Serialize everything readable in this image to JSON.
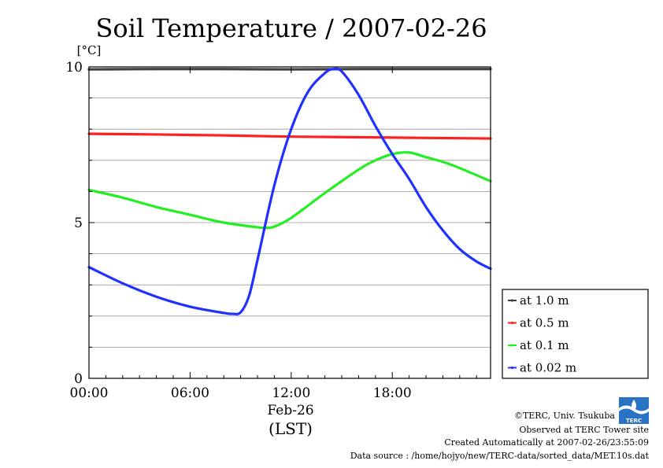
{
  "chart_data": {
    "type": "line",
    "title": "Soil Temperature / 2007-02-26",
    "ylabel": "[°C]",
    "xlabel": "(LST)",
    "x_date_label": "Feb-26",
    "x_unit": "hour of day",
    "xlim": [
      0,
      23.83
    ],
    "ylim": [
      0,
      10
    ],
    "grid": true,
    "legend_position": "right",
    "x_ticks": [
      {
        "value": 0,
        "label": "00:00"
      },
      {
        "value": 6,
        "label": "06:00"
      },
      {
        "value": 12,
        "label": "12:00"
      },
      {
        "value": 18,
        "label": "18:00"
      }
    ],
    "y_ticks": [
      {
        "value": 0,
        "label": "0"
      },
      {
        "value": 5,
        "label": "5"
      },
      {
        "value": 10,
        "label": "10"
      }
    ],
    "y_gridlines": [
      1,
      2,
      3,
      4,
      5,
      6,
      7,
      8,
      9,
      10
    ],
    "series": [
      {
        "name": "at 1.0 m",
        "color": "#404040",
        "x": [
          0,
          4,
          8,
          12,
          16,
          20,
          23.83
        ],
        "y": [
          9.92,
          9.93,
          9.93,
          9.92,
          9.93,
          9.93,
          9.93
        ]
      },
      {
        "name": "at 0.5 m",
        "color": "#ff2020",
        "x": [
          0,
          4,
          8,
          12,
          16,
          20,
          23.83
        ],
        "y": [
          7.85,
          7.83,
          7.8,
          7.76,
          7.74,
          7.72,
          7.7
        ]
      },
      {
        "name": "at 0.1 m",
        "color": "#22ee22",
        "x": [
          0,
          2,
          4,
          6,
          8,
          10,
          10.5,
          11,
          12,
          14,
          16,
          17,
          18,
          19,
          20,
          21,
          22,
          23.83
        ],
        "y": [
          6.05,
          5.8,
          5.5,
          5.25,
          5.0,
          4.85,
          4.83,
          4.87,
          5.15,
          5.95,
          6.7,
          7.0,
          7.2,
          7.25,
          7.1,
          6.95,
          6.75,
          6.33
        ]
      },
      {
        "name": "at 0.02 m",
        "color": "#2030ff",
        "x": [
          0,
          2,
          4,
          6,
          8,
          8.5,
          9,
          9.5,
          10,
          11,
          12,
          13,
          14,
          14.5,
          15,
          16,
          17,
          18,
          19,
          20,
          21,
          22,
          23,
          23.83
        ],
        "y": [
          3.57,
          3.05,
          2.62,
          2.3,
          2.1,
          2.07,
          2.12,
          2.65,
          3.8,
          6.2,
          8.0,
          9.2,
          9.8,
          9.93,
          9.85,
          9.1,
          8.1,
          7.2,
          6.4,
          5.5,
          4.75,
          4.15,
          3.75,
          3.52
        ]
      }
    ]
  },
  "credits": {
    "copyright": "©TERC, Univ. Tsukuba",
    "site": "Observed at TERC Tower site",
    "created": "Created Automatically at 2007-02-26/23:55:09",
    "source": "Data source : /home/hojyo/new/TERC-data/sorted_data/MET.10s.dat",
    "logo_text": "TERC"
  }
}
